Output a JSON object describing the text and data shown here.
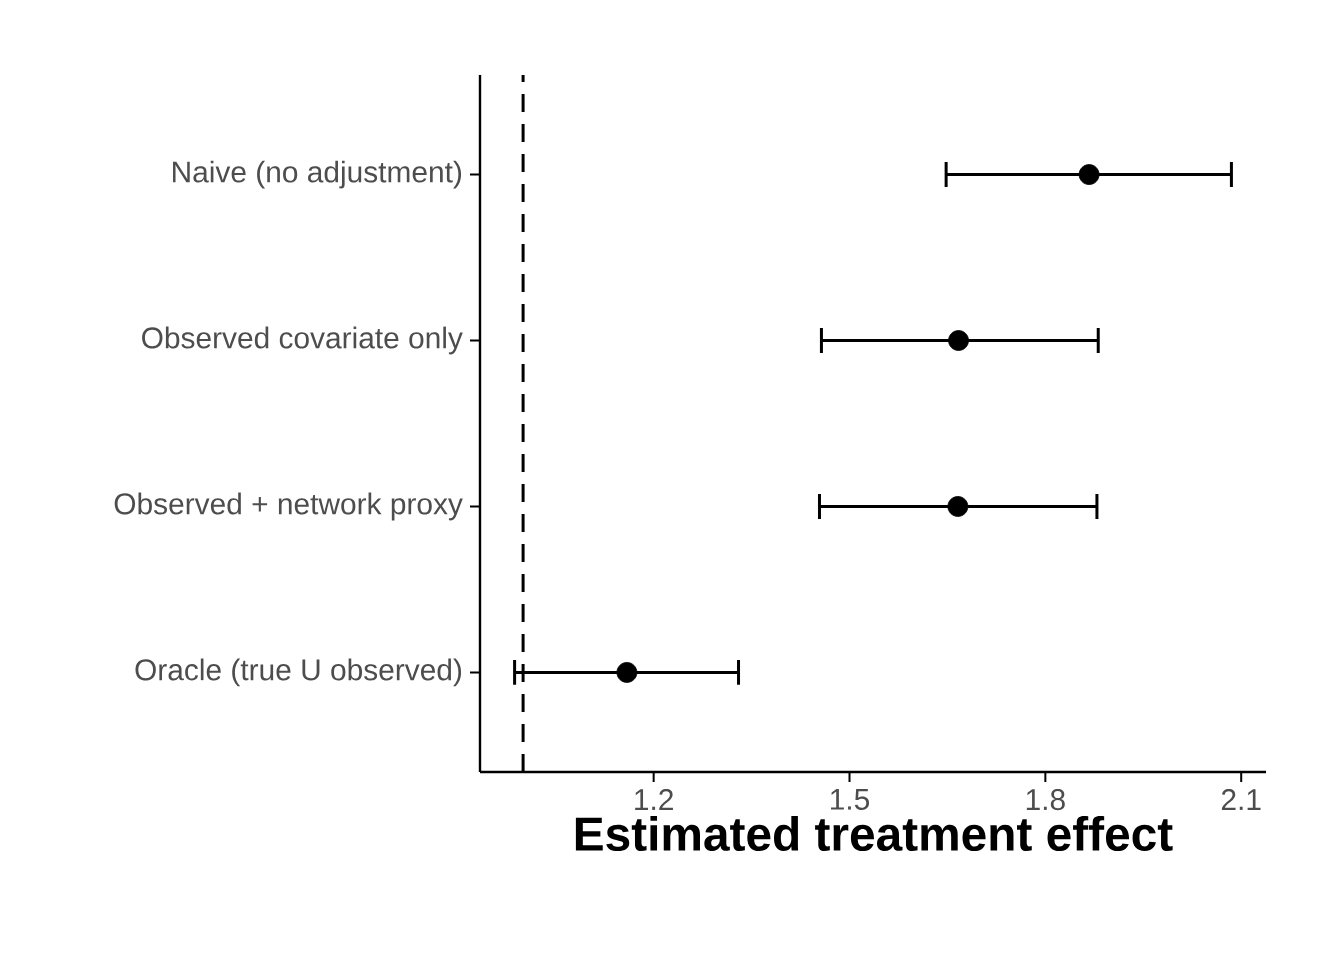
{
  "chart_data": {
    "type": "scatter",
    "orientation": "horizontal",
    "xlabel": "Estimated treatment effect",
    "categories": [
      "Naive (no adjustment)",
      "Observed covariate only",
      "Observed + network proxy",
      "Oracle (true U observed)"
    ],
    "values": [
      1.867,
      1.667,
      1.666,
      1.159
    ],
    "errors": [
      [
        1.648,
        2.085
      ],
      [
        1.457,
        1.881
      ],
      [
        1.454,
        1.879
      ],
      [
        0.987,
        1.33
      ]
    ],
    "color": "#000000",
    "marker": "circle",
    "xlim": [
      0.934,
      2.138
    ],
    "xticks": [
      1.2,
      1.5,
      1.8,
      2.1
    ],
    "ref_lines": [
      {
        "axis": "x",
        "value": 1.0,
        "line_style": "dashed",
        "color": "#000000"
      }
    ],
    "grid": false
  }
}
